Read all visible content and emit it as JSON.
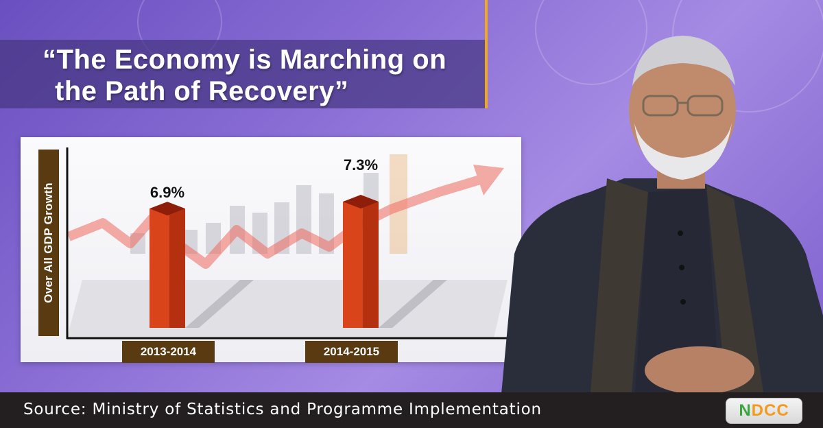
{
  "headline": {
    "line1": "“The Economy is Marching on",
    "line2": "the Path of Recovery”"
  },
  "chart_data": {
    "type": "bar",
    "categories": [
      "2013-2014",
      "2014-2015"
    ],
    "values": [
      6.9,
      7.3
    ],
    "value_labels": [
      "6.9%",
      "7.3%"
    ],
    "title": "",
    "ylabel": "Over All GDP Growth",
    "xlabel": "",
    "bar_color": "#d9441a",
    "label_bg_color": "#5a3a10"
  },
  "source": {
    "text": "Source: Ministry of Statistics and Programme Implementation"
  },
  "logo": {
    "text_first": "N",
    "text_rest": "DCC"
  },
  "colors": {
    "accent": "#f0a91b",
    "background": "#7a5ccc",
    "footer": "#231f20"
  }
}
